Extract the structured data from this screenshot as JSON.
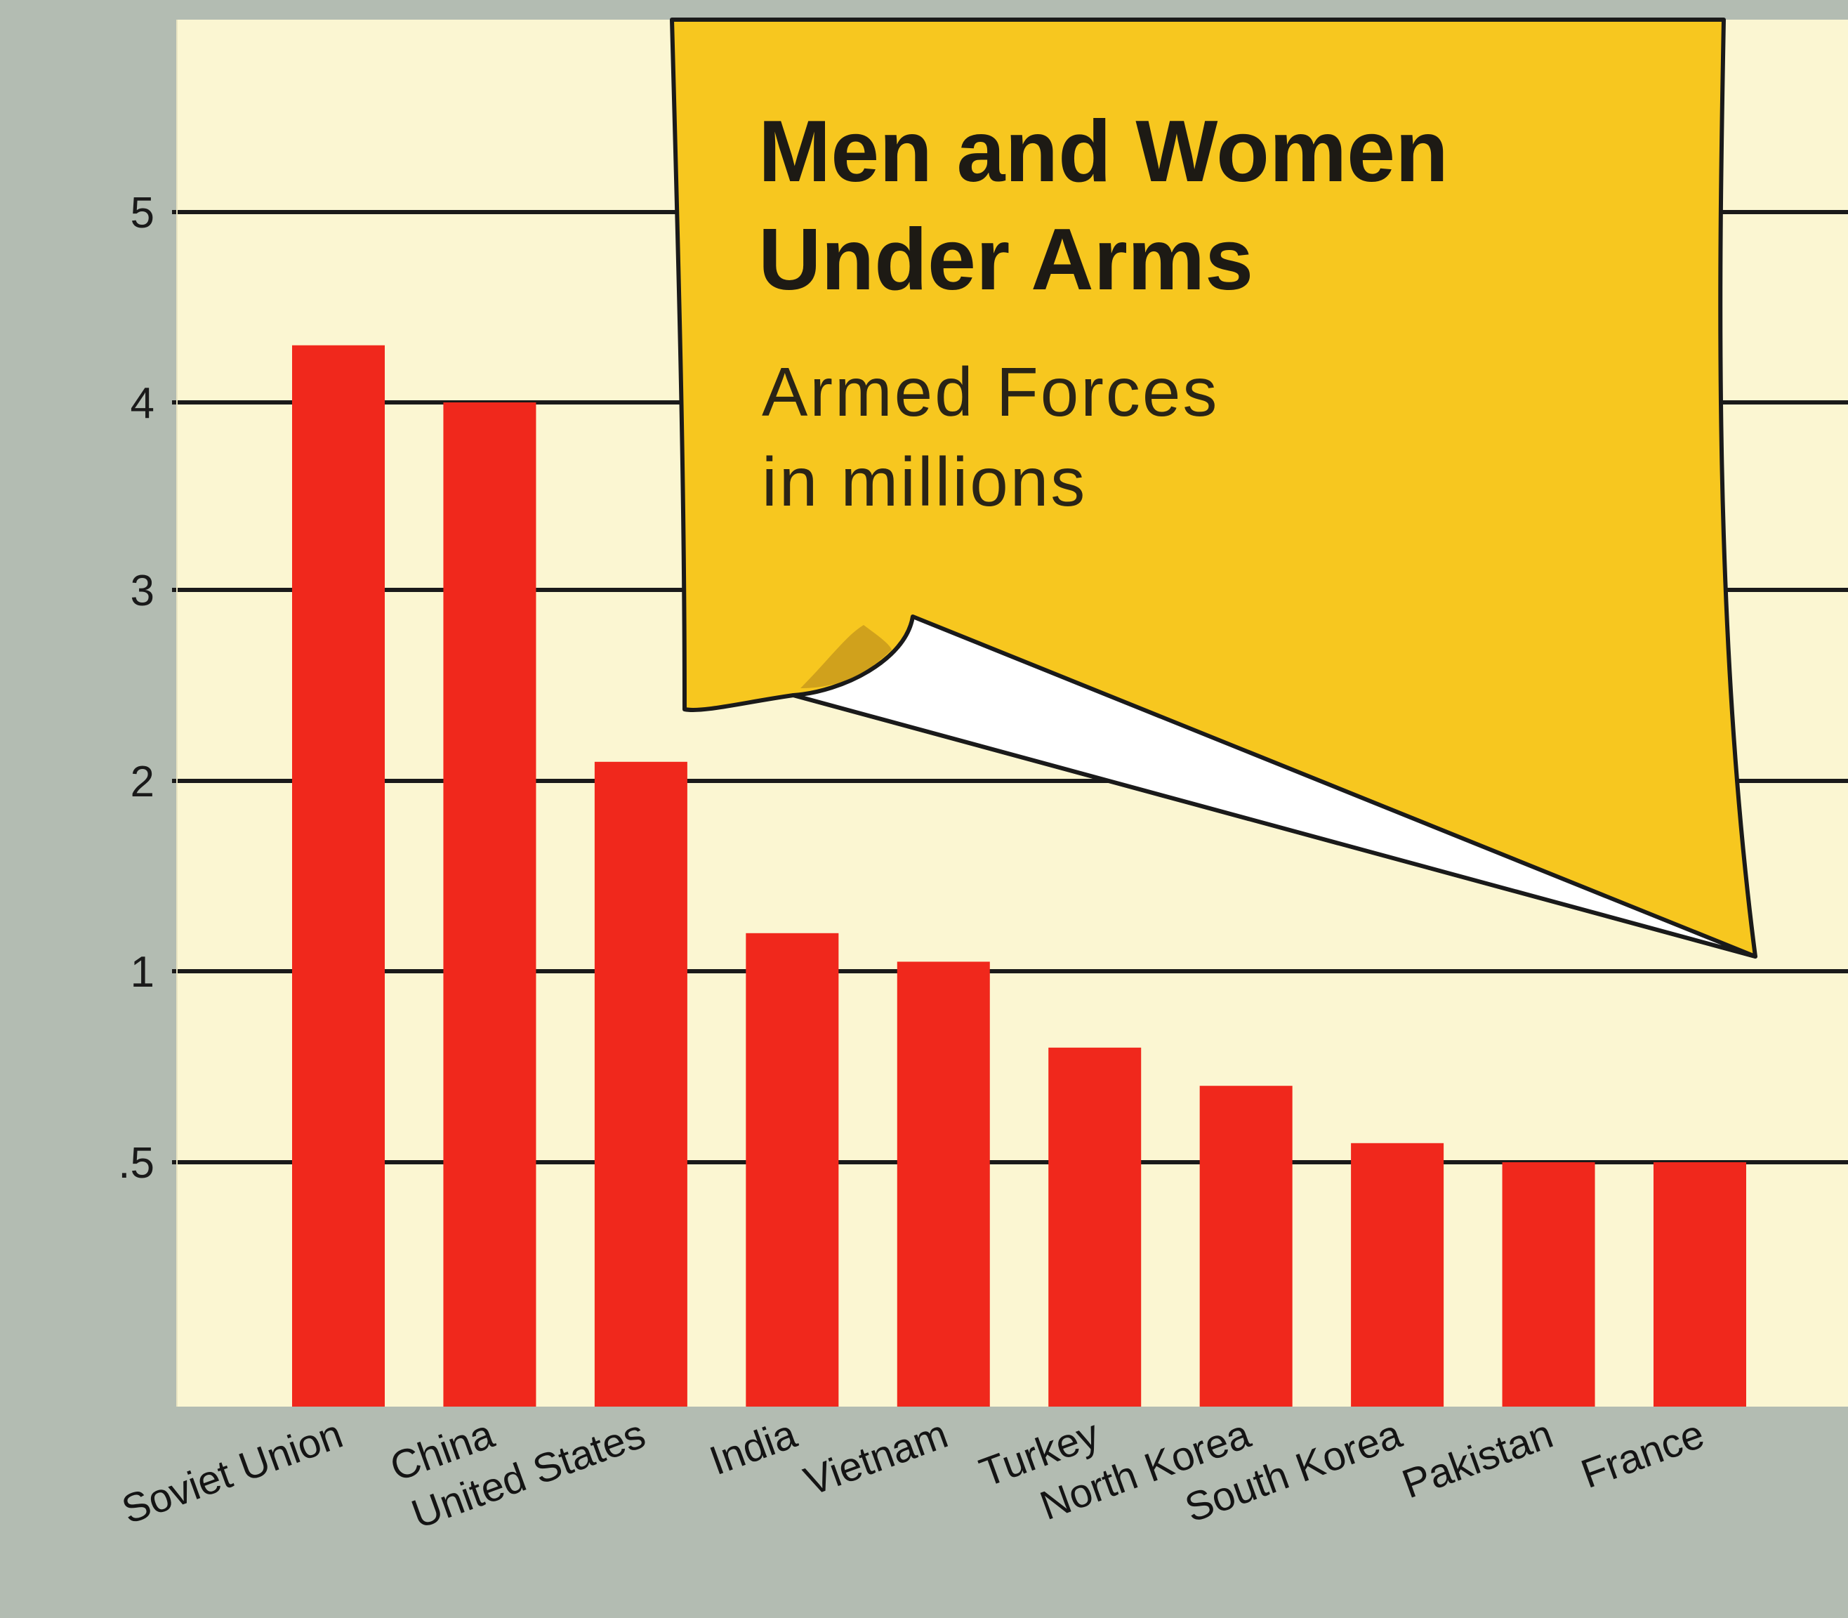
{
  "colors": {
    "background": "#b3bcb2",
    "plot": "#fbf6d2",
    "bar": "#f0281c",
    "gridline": "#1a1a1a",
    "bubble": "#f7c71f",
    "bubble_edge": "#1a1a1a",
    "curl": "#ffffff"
  },
  "chart_data": {
    "type": "bar",
    "title": "Men and Women Under Arms",
    "title_lines": [
      "Men and Women",
      "Under Arms"
    ],
    "subtitle_lines": [
      "Armed Forces",
      "in millions"
    ],
    "xlabel": "",
    "ylabel": "",
    "categories": [
      "Soviet Union",
      "China",
      "United States",
      "India",
      "Vietnam",
      "Turkey",
      "North Korea",
      "South Korea",
      "Pakistan",
      "France"
    ],
    "values": [
      4.3,
      4.0,
      2.1,
      1.2,
      1.05,
      0.8,
      0.7,
      0.55,
      0.5,
      0.5
    ],
    "yticks": [
      {
        "value": 0.5,
        "label": ".5"
      },
      {
        "value": 1,
        "label": "1"
      },
      {
        "value": 2,
        "label": "2"
      },
      {
        "value": 3,
        "label": "3"
      },
      {
        "value": 4,
        "label": "4"
      },
      {
        "value": 5,
        "label": "5"
      }
    ],
    "y_scale": "piecewise-linear",
    "y_scale_breaks": [
      0,
      0.5,
      1,
      2,
      3,
      4,
      5
    ],
    "grid": true,
    "legend": "none"
  }
}
